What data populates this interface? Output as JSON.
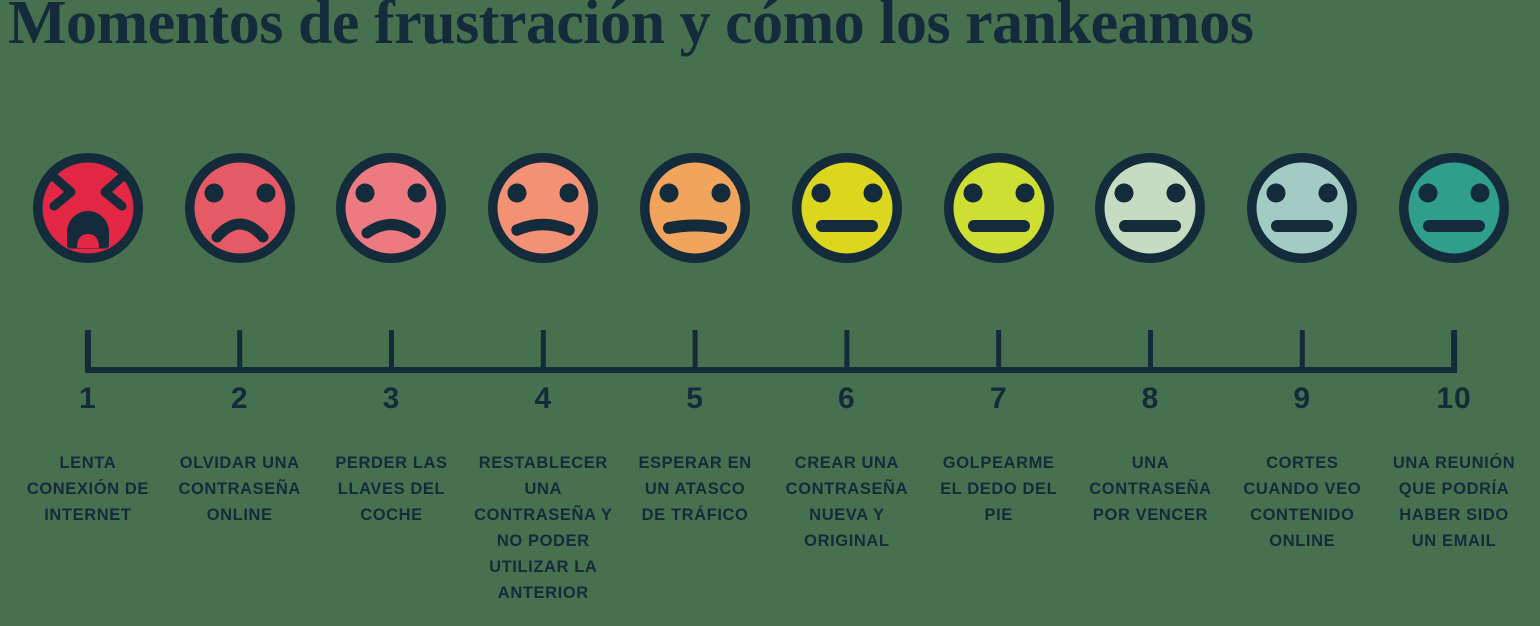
{
  "background_color": "#47704f",
  "ink_color": "#142b3b",
  "title": "Momentos de frustración y cómo los rankeamos",
  "scale": {
    "min": "1",
    "max": "10"
  },
  "chart_data": {
    "type": "table",
    "title": "Momentos de frustración y cómo los rankeamos",
    "categories": [
      "1",
      "2",
      "3",
      "4",
      "5",
      "6",
      "7",
      "8",
      "9",
      "10"
    ],
    "values": [
      1,
      2,
      3,
      4,
      5,
      6,
      7,
      8,
      9,
      10
    ],
    "xlabel": "",
    "ylabel": "",
    "legend": "none",
    "notes": "ranking scale 1 (most frustrating, red angry face) to 10 (least, teal neutral face)"
  },
  "faces": [
    {
      "rank": "1",
      "color": "#e22845",
      "eyes": "squeeze",
      "mouth": "wail",
      "mood": "wailing-angry-face",
      "label": "LENTA\nCONEXIÓN DE\nINTERNET"
    },
    {
      "rank": "2",
      "color": "#e55a64",
      "eyes": "dot",
      "mouth": "frown-deep",
      "mood": "sad-face",
      "label": "OLVIDAR UNA\nCONTRASEÑA\nONLINE"
    },
    {
      "rank": "3",
      "color": "#ec7a80",
      "eyes": "dot",
      "mouth": "frown",
      "mood": "frowning-face",
      "label": "PERDER LAS\nLLAVES DEL\nCOCHE"
    },
    {
      "rank": "4",
      "color": "#f29173",
      "eyes": "dot",
      "mouth": "frown-slight",
      "mood": "slight-frown-face",
      "label": "RESTABLECER\nUNA\nCONTRASEÑA Y\nNO PODER\nUTILIZAR LA\nANTERIOR"
    },
    {
      "rank": "5",
      "color": "#f0a45c",
      "eyes": "dot",
      "mouth": "flat-slight",
      "mood": "almost-neutral-face",
      "label": "ESPERAR EN\nUN ATASCO\nDE TRÁFICO"
    },
    {
      "rank": "6",
      "color": "#ddd621",
      "eyes": "dot",
      "mouth": "flat",
      "mood": "neutral-face",
      "label": "CREAR UNA\nCONTRASEÑA\nNUEVA Y\nORIGINAL"
    },
    {
      "rank": "7",
      "color": "#cede33",
      "eyes": "dot",
      "mouth": "flat",
      "mood": "neutral-face",
      "label": "GOLPEARME\nEL DEDO DEL\nPIE"
    },
    {
      "rank": "8",
      "color": "#c6dbc2",
      "eyes": "dot",
      "mouth": "flat",
      "mood": "neutral-face",
      "label": "UNA\nCONTRASEÑA\nPOR VENCER"
    },
    {
      "rank": "9",
      "color": "#a2cbc3",
      "eyes": "dot",
      "mouth": "flat",
      "mood": "neutral-face",
      "label": "CORTES\nCUANDO VEO\nCONTENIDO\nONLINE"
    },
    {
      "rank": "10",
      "color": "#2f9e8b",
      "eyes": "dot",
      "mouth": "flat",
      "mood": "neutral-face",
      "label": "UNA REUNIÓN\nQUE PODRÍA\nHABER SIDO\nUN EMAIL"
    }
  ]
}
